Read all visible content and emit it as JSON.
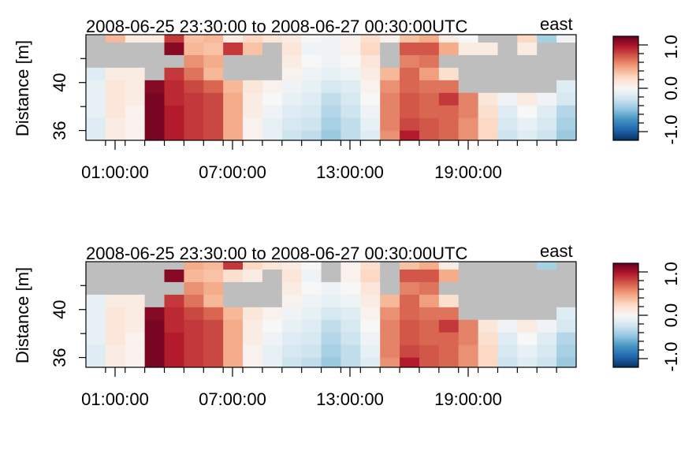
{
  "chart_data": [
    {
      "type": "heatmap",
      "title": "2008-06-25 23:30:00 to 2008-06-27 00:30:00UTC",
      "component_label": "east",
      "ylabel": "Distance [m]",
      "xlabel": "",
      "x_ticks": [
        "01:00:00",
        "07:00:00",
        "13:00:00",
        "19:00:00"
      ],
      "y_ticks": [
        "36",
        "40"
      ],
      "ylim": [
        35.2,
        43.6
      ],
      "zlim": [
        -1.2,
        1.2
      ],
      "colorbar_ticks": [
        "-1.0",
        "0.0",
        "1.0"
      ],
      "na_color": "#bebebe",
      "distance_bins": [
        35.5,
        36.5,
        37.5,
        38.5,
        39.5,
        40.5,
        41.5,
        42.5,
        43.5
      ],
      "time_bins": [
        "00:00",
        "01:00",
        "02:00",
        "03:00",
        "04:00",
        "05:00",
        "06:00",
        "07:00",
        "08:00",
        "09:00",
        "10:00",
        "11:00",
        "12:00",
        "13:00",
        "14:00",
        "15:00",
        "16:00",
        "17:00",
        "18:00",
        "19:00",
        "20:00",
        "21:00",
        "22:00",
        "23:00",
        "24:00"
      ],
      "values": [
        [
          -0.15,
          -0.15,
          -0.1,
          -0.1,
          -0.1,
          -0.15,
          null,
          null,
          null
        ],
        [
          0.1,
          0.1,
          0.15,
          0.15,
          0.15,
          0.1,
          null,
          null,
          0.4
        ],
        [
          0.05,
          0.05,
          0.05,
          0.1,
          0.1,
          0.1,
          null,
          null,
          0.1
        ],
        [
          1.15,
          1.15,
          1.15,
          1.15,
          1.1,
          null,
          null,
          null,
          0.1
        ],
        [
          0.95,
          0.95,
          0.95,
          0.9,
          0.9,
          0.85,
          null,
          1.1,
          0.85
        ],
        [
          0.85,
          0.85,
          0.85,
          0.85,
          0.8,
          0.65,
          0.55,
          0.4,
          0.35
        ],
        [
          0.8,
          0.8,
          0.8,
          0.8,
          0.7,
          0.4,
          0.45,
          0.35,
          0.4
        ],
        [
          0.45,
          0.45,
          0.45,
          0.45,
          0.4,
          null,
          null,
          0.85,
          0.1
        ],
        [
          0.05,
          0.05,
          0.1,
          0.1,
          0.15,
          null,
          null,
          0.35,
          0.25
        ],
        [
          -0.1,
          -0.1,
          -0.05,
          0.0,
          0.05,
          null,
          null,
          null,
          0.15
        ],
        [
          -0.25,
          -0.2,
          -0.15,
          -0.1,
          -0.05,
          0.05,
          0.1,
          0.15,
          0.1
        ],
        [
          -0.3,
          -0.25,
          -0.2,
          -0.15,
          -0.1,
          -0.05,
          0.0,
          -0.05,
          0.0
        ],
        [
          -0.45,
          -0.4,
          -0.35,
          -0.3,
          -0.2,
          -0.1,
          -0.05,
          -0.05,
          -0.05
        ],
        [
          -0.3,
          -0.3,
          -0.25,
          -0.2,
          -0.15,
          -0.05,
          0.0,
          0.05,
          0.05
        ],
        [
          -0.15,
          -0.1,
          -0.05,
          0.0,
          0.05,
          0.1,
          0.15,
          0.25,
          0.2
        ],
        [
          0.55,
          0.6,
          0.6,
          0.6,
          0.55,
          0.4,
          null,
          null,
          0.05
        ],
        [
          0.95,
          0.8,
          0.75,
          0.75,
          0.7,
          0.7,
          0.6,
          0.75,
          0.35
        ],
        [
          0.75,
          0.75,
          0.7,
          0.7,
          0.65,
          0.5,
          0.65,
          0.75,
          0.45
        ],
        [
          0.7,
          0.7,
          0.7,
          0.85,
          0.65,
          0.2,
          null,
          0.45,
          0.1
        ],
        [
          0.55,
          0.55,
          0.6,
          0.6,
          null,
          null,
          null,
          0.1,
          0.0
        ],
        [
          0.25,
          0.25,
          0.2,
          0.15,
          null,
          null,
          null,
          0.1,
          null
        ],
        [
          -0.25,
          -0.2,
          -0.15,
          -0.05,
          null,
          null,
          null,
          null,
          null
        ],
        [
          -0.15,
          -0.1,
          0.0,
          0.1,
          null,
          null,
          null,
          0.1,
          0.25
        ],
        [
          -0.25,
          -0.2,
          -0.15,
          -0.05,
          null,
          null,
          null,
          null,
          -0.4
        ],
        [
          -0.45,
          -0.4,
          -0.35,
          -0.2,
          -0.15,
          null,
          null,
          null,
          -0.05
        ]
      ]
    },
    {
      "type": "heatmap",
      "title": "2008-06-25 23:30:00 to 2008-06-27 00:30:00UTC",
      "component_label": "east",
      "ylabel": "Distance [m]",
      "xlabel": "",
      "x_ticks": [
        "01:00:00",
        "07:00:00",
        "13:00:00",
        "19:00:00"
      ],
      "y_ticks": [
        "36",
        "40"
      ],
      "ylim": [
        35.2,
        43.6
      ],
      "zlim": [
        -1.2,
        1.2
      ],
      "colorbar_ticks": [
        "-1.0",
        "0.0",
        "1.0"
      ],
      "na_color": "#bebebe",
      "distance_bins": [
        35.5,
        36.5,
        37.5,
        38.5,
        39.5,
        40.5,
        41.5,
        42.5,
        43.5
      ],
      "time_bins": [
        "00:00",
        "01:00",
        "02:00",
        "03:00",
        "04:00",
        "05:00",
        "06:00",
        "07:00",
        "08:00",
        "09:00",
        "10:00",
        "11:00",
        "12:00",
        "13:00",
        "14:00",
        "15:00",
        "16:00",
        "17:00",
        "18:00",
        "19:00",
        "20:00",
        "21:00",
        "22:00",
        "23:00",
        "24:00"
      ],
      "values": [
        [
          -0.15,
          -0.15,
          -0.1,
          -0.1,
          -0.1,
          -0.1,
          null,
          null,
          null
        ],
        [
          0.1,
          0.1,
          0.15,
          0.15,
          0.15,
          0.1,
          null,
          null,
          null
        ],
        [
          0.05,
          0.05,
          0.05,
          0.1,
          0.1,
          0.1,
          null,
          null,
          null
        ],
        [
          1.15,
          1.15,
          1.15,
          1.15,
          1.1,
          null,
          null,
          null,
          null
        ],
        [
          0.95,
          0.95,
          0.95,
          0.9,
          0.9,
          0.85,
          null,
          1.1,
          null
        ],
        [
          0.85,
          0.85,
          0.85,
          0.85,
          0.8,
          0.65,
          0.55,
          0.4,
          0.45
        ],
        [
          0.8,
          0.8,
          0.8,
          0.8,
          0.7,
          0.4,
          0.45,
          0.35,
          0.4
        ],
        [
          0.45,
          0.45,
          0.45,
          0.45,
          0.4,
          null,
          null,
          0.2,
          0.85
        ],
        [
          0.05,
          0.05,
          0.1,
          0.1,
          0.15,
          null,
          null,
          0.1,
          0.25
        ],
        [
          -0.1,
          -0.1,
          -0.05,
          0.0,
          0.05,
          null,
          null,
          null,
          0.15
        ],
        [
          -0.25,
          -0.2,
          -0.15,
          -0.1,
          -0.05,
          0.05,
          0.1,
          0.15,
          0.1
        ],
        [
          -0.3,
          -0.25,
          -0.2,
          -0.15,
          -0.1,
          -0.05,
          0.0,
          -0.05,
          0.0
        ],
        [
          -0.45,
          -0.4,
          -0.35,
          -0.3,
          -0.2,
          -0.1,
          -0.05,
          null,
          null
        ],
        [
          -0.3,
          -0.3,
          -0.25,
          -0.2,
          -0.15,
          -0.05,
          0.0,
          0.05,
          0.05
        ],
        [
          -0.15,
          -0.1,
          -0.05,
          0.0,
          0.05,
          0.1,
          0.15,
          0.25,
          0.2
        ],
        [
          0.55,
          0.6,
          0.6,
          0.6,
          0.55,
          0.4,
          null,
          null,
          null
        ],
        [
          0.95,
          0.8,
          0.75,
          0.75,
          0.7,
          0.7,
          0.6,
          0.75,
          0.35
        ],
        [
          0.75,
          0.75,
          0.7,
          0.7,
          0.65,
          0.5,
          0.65,
          0.75,
          0.45
        ],
        [
          0.7,
          0.7,
          0.7,
          0.85,
          0.65,
          0.2,
          null,
          0.45,
          0.1
        ],
        [
          0.55,
          0.55,
          0.6,
          0.6,
          null,
          null,
          null,
          null,
          null
        ],
        [
          0.25,
          0.25,
          0.2,
          0.15,
          null,
          null,
          null,
          null,
          null
        ],
        [
          -0.25,
          -0.2,
          -0.15,
          -0.05,
          null,
          null,
          null,
          null,
          null
        ],
        [
          -0.15,
          -0.1,
          0.0,
          0.1,
          null,
          null,
          null,
          null,
          null
        ],
        [
          -0.25,
          -0.2,
          -0.15,
          -0.05,
          null,
          null,
          null,
          null,
          -0.4
        ],
        [
          -0.45,
          -0.4,
          -0.35,
          -0.2,
          -0.15,
          null,
          null,
          null,
          null
        ]
      ]
    }
  ],
  "colorscale": {
    "name": "RdBu",
    "stops": [
      "#053061",
      "#2166ac",
      "#4393c3",
      "#92c5de",
      "#d1e5f0",
      "#f7f7f7",
      "#fddbc7",
      "#f4a582",
      "#d6604d",
      "#b2182b",
      "#67001f"
    ]
  }
}
